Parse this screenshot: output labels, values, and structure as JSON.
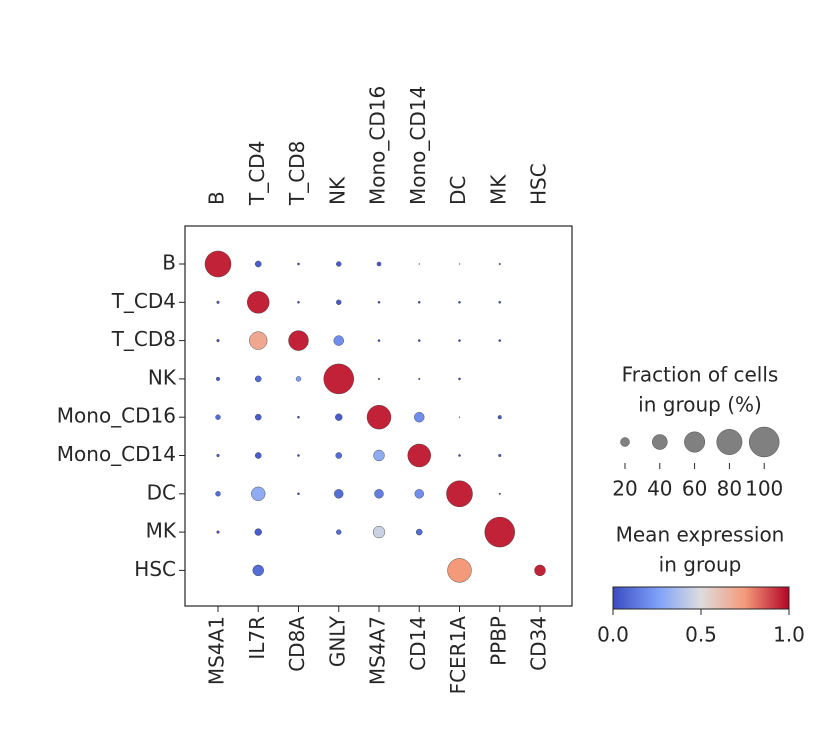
{
  "chart_data": {
    "type": "dotplot",
    "groups": [
      "B",
      "T_CD4",
      "T_CD8",
      "NK",
      "Mono_CD16",
      "Mono_CD14",
      "DC",
      "MK",
      "HSC"
    ],
    "genes": [
      "MS4A1",
      "IL7R",
      "CD8A",
      "GNLY",
      "MS4A7",
      "CD14",
      "FCER1A",
      "PPBP",
      "CD34"
    ],
    "gene_groups": [
      "B",
      "T_CD4",
      "T_CD8",
      "NK",
      "Mono_CD16",
      "Mono_CD14",
      "DC",
      "MK",
      "HSC"
    ],
    "colormap": "coolwarm",
    "fraction": [
      [
        83,
        12,
        3,
        9,
        7,
        1,
        1,
        2,
        null
      ],
      [
        4,
        66,
        3,
        9,
        3,
        3,
        3,
        3,
        null
      ],
      [
        4,
        50,
        58,
        23,
        3,
        3,
        3,
        3,
        null
      ],
      [
        6,
        12,
        9,
        100,
        2,
        2,
        3,
        null,
        null
      ],
      [
        9,
        12,
        3,
        14,
        74,
        23,
        1,
        6,
        null
      ],
      [
        4,
        12,
        3,
        12,
        26,
        70,
        3,
        4,
        null
      ],
      [
        9,
        36,
        3,
        20,
        20,
        20,
        83,
        2,
        null
      ],
      [
        4,
        14,
        null,
        9,
        29,
        12,
        null,
        100,
        null
      ],
      [
        null,
        26,
        null,
        null,
        null,
        null,
        74,
        null,
        26
      ]
    ],
    "expression": [
      [
        0.95,
        0.05,
        0.0,
        0.05,
        0.05,
        0.0,
        0.0,
        0.0,
        null
      ],
      [
        0.05,
        0.95,
        0.0,
        0.05,
        0.0,
        0.0,
        0.0,
        0.0,
        null
      ],
      [
        0.05,
        0.7,
        0.95,
        0.2,
        0.0,
        0.0,
        0.0,
        0.0,
        null
      ],
      [
        0.05,
        0.1,
        0.25,
        0.95,
        0.0,
        0.0,
        0.0,
        null,
        null
      ],
      [
        0.1,
        0.05,
        0.0,
        0.05,
        0.95,
        0.2,
        0.0,
        0.05,
        null
      ],
      [
        0.05,
        0.05,
        0.0,
        0.1,
        0.3,
        0.95,
        0.0,
        0.05,
        null
      ],
      [
        0.1,
        0.3,
        0.0,
        0.1,
        0.15,
        0.2,
        0.95,
        0.0,
        null
      ],
      [
        0.05,
        0.05,
        null,
        0.1,
        0.45,
        0.1,
        null,
        0.95,
        null
      ],
      [
        null,
        0.1,
        null,
        null,
        null,
        null,
        0.75,
        null,
        0.95
      ]
    ],
    "size_legend": {
      "title": [
        "Fraction of cells",
        "in group (%)"
      ],
      "ticks": [
        20,
        40,
        60,
        80,
        100
      ]
    },
    "color_legend": {
      "title": [
        "Mean expression",
        "in group"
      ],
      "lim": [
        0,
        1
      ],
      "ticks": [
        {
          "value": 0,
          "label": "0.0"
        },
        0.5,
        {
          "value": 1,
          "label": "1.0"
        }
      ]
    }
  }
}
